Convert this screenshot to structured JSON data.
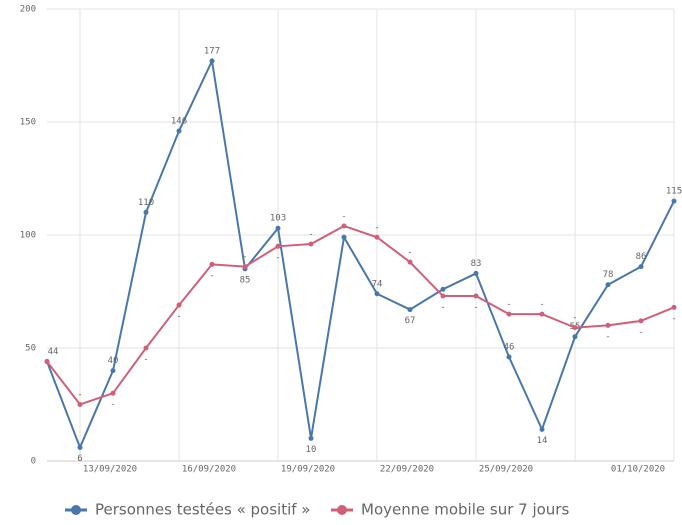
{
  "chart_data": {
    "type": "line",
    "categories": [
      null,
      null,
      "13/09/2020",
      null,
      null,
      "16/09/2020",
      null,
      null,
      "19/09/2020",
      null,
      null,
      "22/09/2020",
      null,
      null,
      "25/09/2020",
      null,
      null,
      null,
      "01/10/2020",
      null
    ],
    "series": [
      {
        "name": "Personnes testées « positif »",
        "color": "#4a77aa",
        "values": [
          44,
          6,
          40,
          110,
          146,
          177,
          85,
          103,
          10,
          99,
          74,
          67,
          76,
          83,
          46,
          14,
          55,
          78,
          86,
          115
        ],
        "value_labels": [
          "44",
          "6",
          "40",
          "110",
          "146",
          "177",
          "85",
          "103",
          "10",
          null,
          "74",
          "67",
          null,
          "83",
          "46",
          "14",
          "55",
          "78",
          "86",
          "115"
        ]
      },
      {
        "name": "Moyenne mobile sur 7 jours",
        "color": "#d0607a",
        "values": [
          44,
          25,
          30,
          50,
          69,
          87,
          86,
          95,
          96,
          104,
          99,
          88,
          73,
          73,
          65,
          65,
          59,
          60,
          62,
          68
        ],
        "value_labels": [
          null,
          "-",
          "-",
          "-",
          "-",
          "-",
          "-",
          "-",
          "-",
          "-",
          "-",
          "-",
          "-",
          "-",
          "-",
          "-",
          "-",
          "-",
          "-",
          "-"
        ]
      }
    ],
    "ylim": [
      0,
      200
    ],
    "yticks": [
      0,
      50,
      100,
      150,
      200
    ],
    "grid": true
  }
}
